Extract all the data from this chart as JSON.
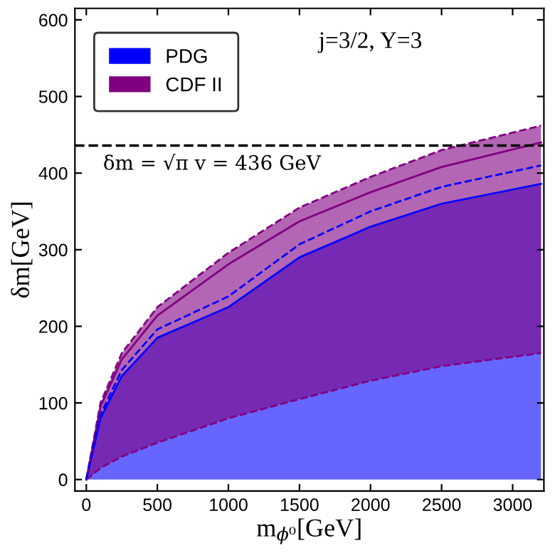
{
  "chart_data": {
    "type": "area",
    "xlabel": "m$_{ϕ⁰}$[GeV]",
    "ylabel": "δm[GeV]",
    "annotations": [
      "j=3/2, Y=3"
    ],
    "x": [
      0,
      100,
      250,
      500,
      1000,
      1500,
      2000,
      2500,
      3200
    ],
    "series": [
      {
        "name": "PDG",
        "color": "#0000ff",
        "values": [
          0,
          80,
          135,
          185,
          225,
          290,
          330,
          360,
          386
        ]
      },
      {
        "name": "CDF II",
        "color": "#800080",
        "type": "line",
        "values": [
          0,
          95,
          157,
          214,
          281,
          337,
          375,
          408,
          440
        ],
        "lower": [
          0,
          15,
          30,
          48,
          80,
          105,
          129,
          148,
          165
        ],
        "upper": [
          0,
          100,
          165,
          225,
          296,
          355,
          395,
          430,
          462
        ],
        "line_style": "solid"
      },
      {
        "color": "#800080",
        "type": "line",
        "values": [
          0,
          15,
          30,
          48,
          80,
          105,
          129,
          148,
          165
        ],
        "line_style": "dashed"
      },
      {
        "color": "#800080",
        "type": "line",
        "values": [
          0,
          100,
          165,
          225,
          296,
          355,
          395,
          430,
          462
        ],
        "line_style": "dashed"
      },
      {
        "color": "#0000ff",
        "type": "line",
        "values": [
          0,
          85,
          143,
          196,
          239,
          307,
          350,
          382,
          410
        ],
        "line_style": "dashed"
      }
    ],
    "ref_lines": [
      {
        "axis": "y",
        "value": 436,
        "label": "δm = √π v = 436 GeV",
        "color": "#000000",
        "line_style": "dashed"
      }
    ],
    "xlim": [
      -80,
      3220
    ],
    "ylim": [
      -15,
      615
    ],
    "xticks": [
      0,
      500,
      1000,
      1500,
      2000,
      2500,
      3000
    ],
    "yticks": [
      0,
      100,
      200,
      300,
      400,
      500,
      600
    ],
    "legend": "top left",
    "grid": false
  }
}
